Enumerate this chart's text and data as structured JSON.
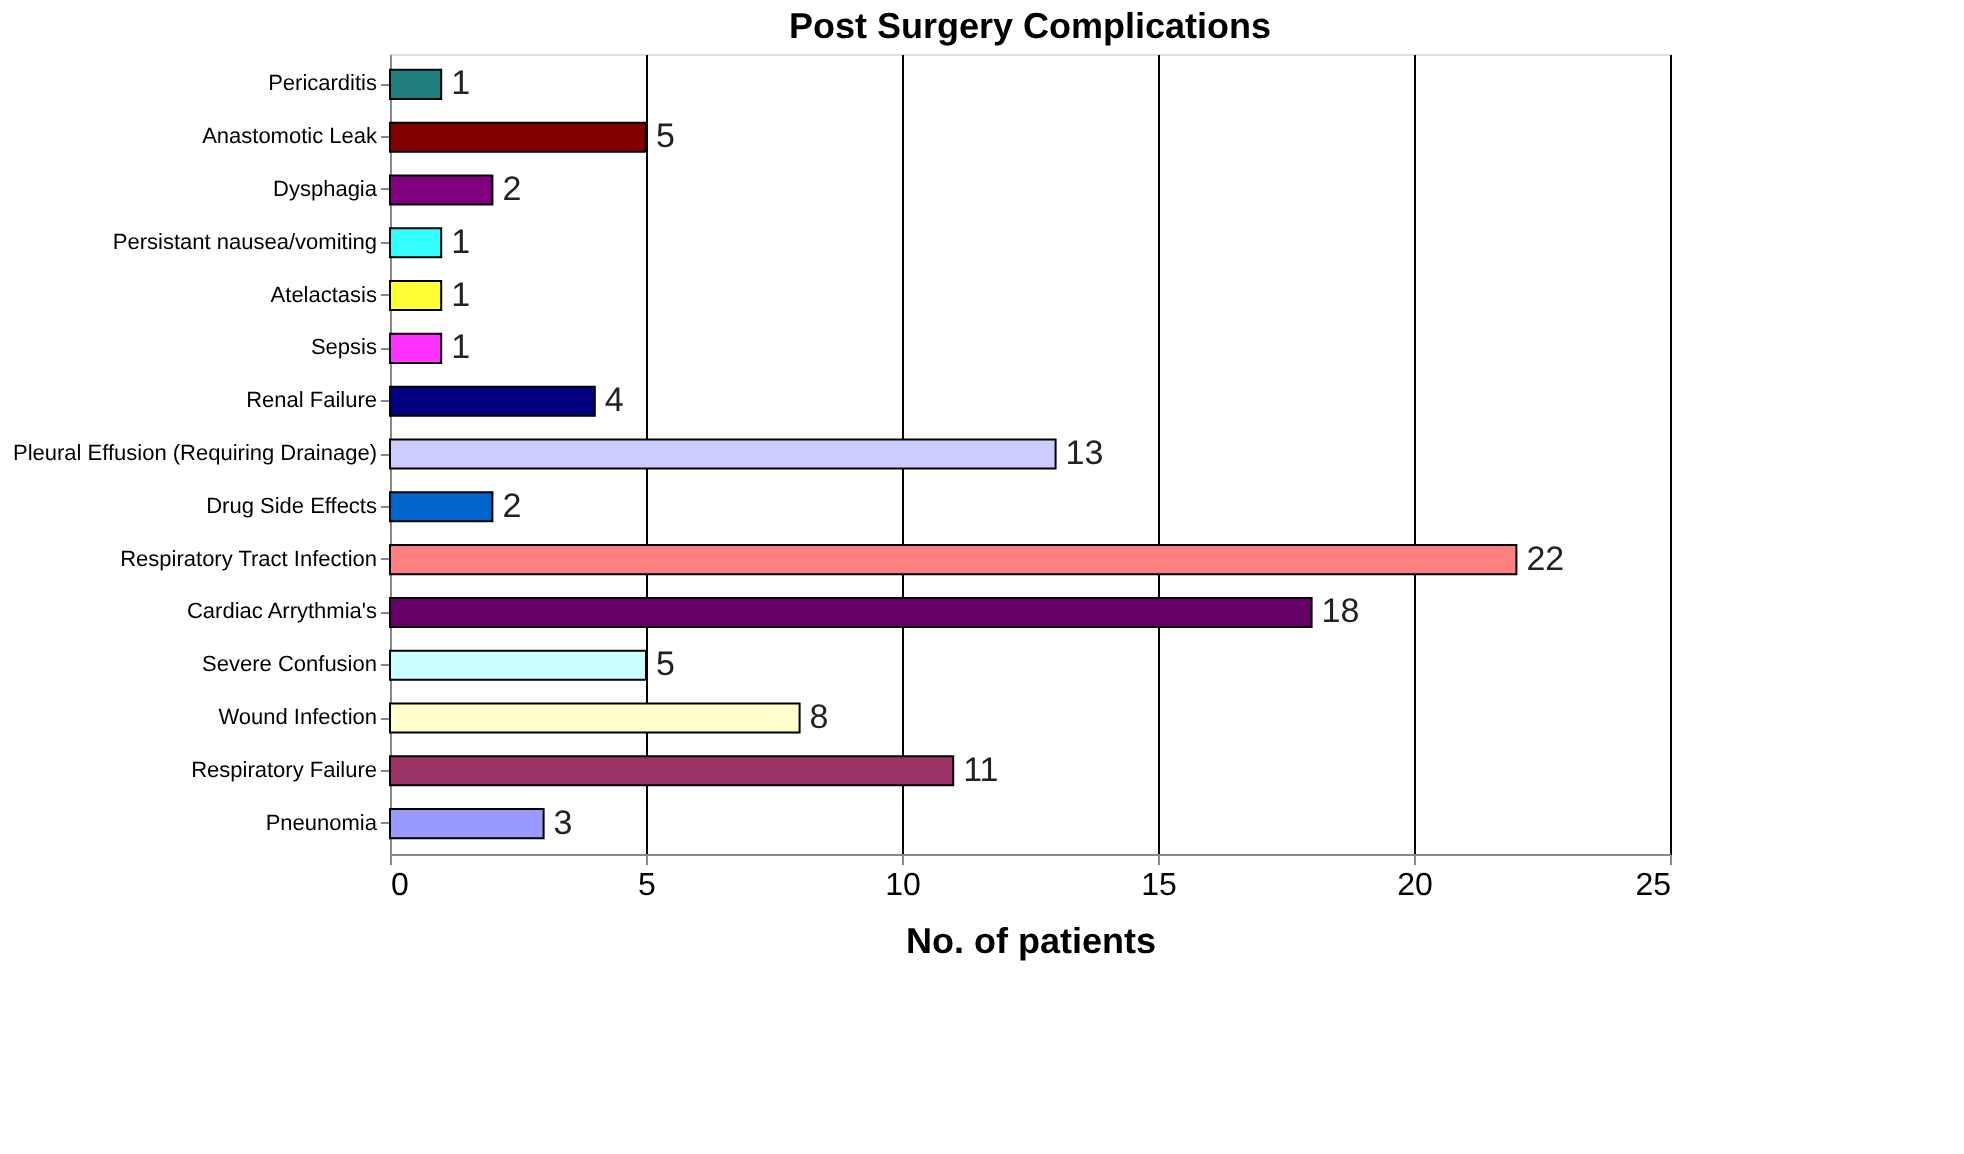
{
  "chart_data": {
    "type": "bar",
    "orientation": "horizontal",
    "title": "Post Surgery Complications",
    "xlabel": "No. of patients",
    "categories": [
      "Pericarditis",
      "Anastomotic Leak",
      "Dysphagia",
      "Persistant nausea/vomiting",
      "Atelactasis",
      "Sepsis",
      "Renal Failure",
      "Pleural Effusion (Requiring Drainage)",
      "Drug Side Effects",
      "Respiratory Tract Infection",
      "Cardiac Arrythmia's",
      "Severe Confusion",
      "Wound Infection",
      "Respiratory Failure",
      "Pneunomia"
    ],
    "values": [
      1,
      5,
      2,
      1,
      1,
      1,
      4,
      13,
      2,
      22,
      18,
      5,
      8,
      11,
      3
    ],
    "colors": [
      "#1f7f7f",
      "#800000",
      "#800080",
      "#33ffff",
      "#ffff33",
      "#ff33ff",
      "#000080",
      "#ccccff",
      "#0066cc",
      "#ff8080",
      "#660066",
      "#ccffff",
      "#ffffcc",
      "#993366",
      "#9999ff"
    ],
    "xlim": [
      0,
      25
    ],
    "xticks": [
      0,
      5,
      10,
      15,
      20,
      25
    ],
    "grid": "x",
    "data_labels": true
  }
}
